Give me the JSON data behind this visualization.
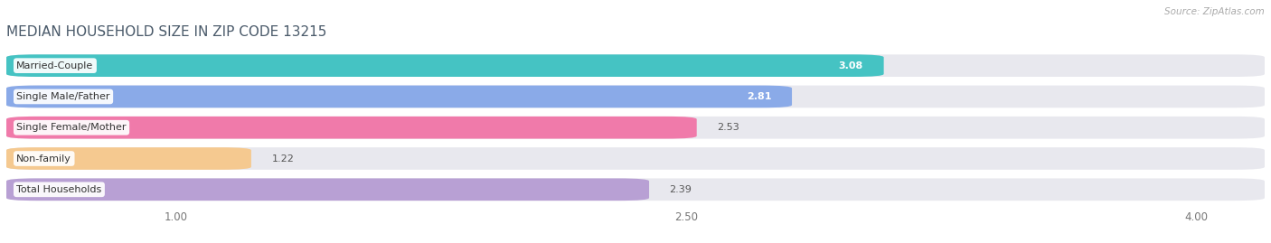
{
  "title": "MEDIAN HOUSEHOLD SIZE IN ZIP CODE 13215",
  "source": "Source: ZipAtlas.com",
  "categories": [
    "Married-Couple",
    "Single Male/Father",
    "Single Female/Mother",
    "Non-family",
    "Total Households"
  ],
  "values": [
    3.08,
    2.81,
    2.53,
    1.22,
    2.39
  ],
  "bar_colors": [
    "#45c3c3",
    "#8aaae8",
    "#f07aaa",
    "#f5c990",
    "#b8a0d4"
  ],
  "bar_bg_color": "#e8e8ee",
  "xlim_data": [
    0.5,
    4.2
  ],
  "xmin": 0.5,
  "xmax": 4.2,
  "xticks": [
    1.0,
    2.5,
    4.0
  ],
  "xlabel_fontsize": 8.5,
  "title_fontsize": 11,
  "title_color": "#4a5a6a",
  "value_label_fontsize": 8,
  "category_label_fontsize": 8,
  "background_color": "#ffffff",
  "bar_height": 0.72,
  "bar_gap": 0.28
}
